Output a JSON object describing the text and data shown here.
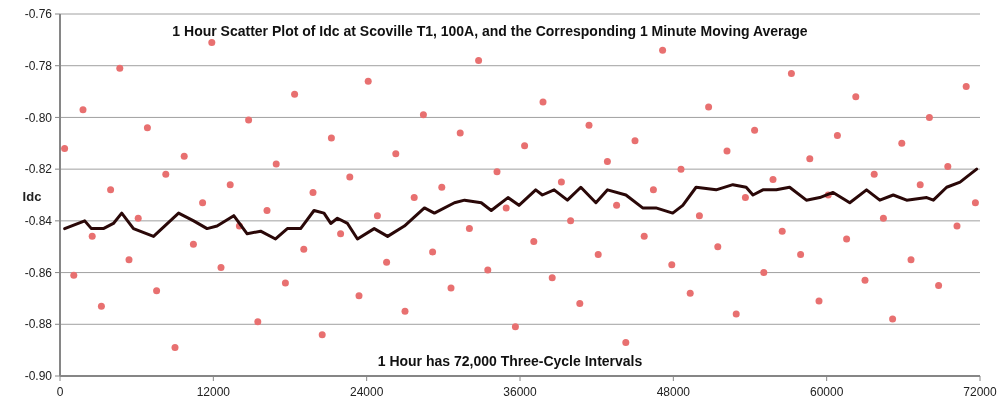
{
  "chart_data": {
    "type": "scatter",
    "title": "1 Hour Scatter Plot of Idc at  Scoville T1, 100A, and the Corresponding 1 Minute Moving Average",
    "ylabel": "Idc",
    "annotations": [
      "1 Hour has 72,000 Three-Cycle Intervals"
    ],
    "xlim": [
      0,
      72000
    ],
    "xticks": [
      0,
      12000,
      24000,
      36000,
      48000,
      60000,
      72000
    ],
    "ylim": [
      -0.9,
      -0.76
    ],
    "yticks": [
      {
        "value": -0.9,
        "label": "-0.90"
      },
      {
        "value": -0.88,
        "label": "-0.88"
      },
      {
        "value": -0.86,
        "label": "-0.86"
      },
      {
        "value": -0.84,
        "label": "-0.84"
      },
      {
        "value": -0.82,
        "label": "-0.82"
      },
      {
        "value": -0.8,
        "label": "-0.80"
      },
      {
        "value": -0.78,
        "label": "-0.78"
      },
      {
        "value": -0.76,
        "label": "-0.76"
      }
    ],
    "grid": "y",
    "marker": "circle",
    "series": [
      {
        "color": "#e87070",
        "x": [
          360,
          1080,
          1800,
          2520,
          3240,
          3960,
          4680,
          5400,
          6120,
          6840,
          7560,
          8280,
          9000,
          9720,
          10440,
          11160,
          11880,
          12600,
          13320,
          14040,
          14760,
          15480,
          16200,
          16920,
          17640,
          18360,
          19080,
          19800,
          20520,
          21240,
          21960,
          22680,
          23400,
          24120,
          24840,
          25560,
          26280,
          27000,
          27720,
          28440,
          29160,
          29880,
          30600,
          31320,
          32040,
          32760,
          33480,
          34200,
          34920,
          35640,
          36360,
          37080,
          37800,
          38520,
          39240,
          39960,
          40680,
          41400,
          42120,
          42840,
          43560,
          44280,
          45000,
          45720,
          46440,
          47160,
          47880,
          48600,
          49320,
          50040,
          50760,
          51480,
          52200,
          52920,
          53640,
          54360,
          55080,
          55800,
          56520,
          57240,
          57960,
          58680,
          59400,
          60120,
          60840,
          61560,
          62280,
          63000,
          63720,
          64440,
          65160,
          65880,
          66600,
          67320,
          68040,
          68760,
          69480,
          70200,
          70920,
          71640
        ],
        "values": [
          -0.812,
          -0.861,
          -0.797,
          -0.846,
          -0.873,
          -0.828,
          -0.781,
          -0.855,
          -0.839,
          -0.804,
          -0.867,
          -0.822,
          -0.889,
          -0.815,
          -0.849,
          -0.833,
          -0.771,
          -0.858,
          -0.826,
          -0.842,
          -0.801,
          -0.879,
          -0.836,
          -0.818,
          -0.864,
          -0.791,
          -0.851,
          -0.829,
          -0.884,
          -0.808,
          -0.845,
          -0.823,
          -0.869,
          -0.786,
          -0.838,
          -0.856,
          -0.814,
          -0.875,
          -0.831,
          -0.799,
          -0.852,
          -0.827,
          -0.866,
          -0.806,
          -0.843,
          -0.778,
          -0.859,
          -0.821,
          -0.835,
          -0.881,
          -0.811,
          -0.848,
          -0.794,
          -0.862,
          -0.825,
          -0.84,
          -0.872,
          -0.803,
          -0.853,
          -0.817,
          -0.834,
          -0.887,
          -0.809,
          -0.846,
          -0.828,
          -0.774,
          -0.857,
          -0.82,
          -0.868,
          -0.838,
          -0.796,
          -0.85,
          -0.813,
          -0.876,
          -0.831,
          -0.805,
          -0.86,
          -0.824,
          -0.844,
          -0.783,
          -0.853,
          -0.816,
          -0.871,
          -0.83,
          -0.807,
          -0.847,
          -0.792,
          -0.863,
          -0.822,
          -0.839,
          -0.878,
          -0.81,
          -0.855,
          -0.826,
          -0.8,
          -0.865,
          -0.819,
          -0.842,
          -0.788,
          -0.833
        ]
      },
      {
        "type": "line",
        "color": "#2a0808",
        "line_style": "solid",
        "marker": "none",
        "x": [
          365,
          1936,
          2460,
          3390,
          4180,
          4830,
          5750,
          7320,
          9280,
          10460,
          11510,
          12290,
          13600,
          14650,
          15700,
          16870,
          17790,
          18830,
          19880,
          20660,
          21190,
          21710,
          22500,
          23280,
          24590,
          25640,
          26950,
          28520,
          29300,
          30870,
          31660,
          32970,
          33750,
          35060,
          35920,
          37230,
          37750,
          38670,
          39710,
          40760,
          41940,
          42850,
          44290,
          45600,
          46640,
          47950,
          48740,
          49780,
          51350,
          52660,
          53700,
          54230,
          55010,
          56060,
          57100,
          58410,
          59460,
          60500,
          61810,
          63120,
          64160,
          65210,
          66260,
          67830,
          68350,
          69390,
          70440,
          70960,
          71740
        ],
        "values": [
          -0.843,
          -0.84,
          -0.843,
          -0.843,
          -0.841,
          -0.837,
          -0.843,
          -0.846,
          -0.837,
          -0.84,
          -0.843,
          -0.842,
          -0.838,
          -0.845,
          -0.844,
          -0.847,
          -0.843,
          -0.843,
          -0.836,
          -0.837,
          -0.841,
          -0.839,
          -0.841,
          -0.847,
          -0.843,
          -0.846,
          -0.842,
          -0.835,
          -0.837,
          -0.833,
          -0.832,
          -0.833,
          -0.836,
          -0.831,
          -0.834,
          -0.828,
          -0.83,
          -0.828,
          -0.832,
          -0.827,
          -0.833,
          -0.828,
          -0.83,
          -0.835,
          -0.835,
          -0.837,
          -0.834,
          -0.827,
          -0.828,
          -0.826,
          -0.827,
          -0.83,
          -0.828,
          -0.828,
          -0.827,
          -0.832,
          -0.831,
          -0.829,
          -0.833,
          -0.828,
          -0.832,
          -0.83,
          -0.832,
          -0.831,
          -0.832,
          -0.827,
          -0.825,
          -0.823,
          -0.82
        ]
      }
    ]
  }
}
